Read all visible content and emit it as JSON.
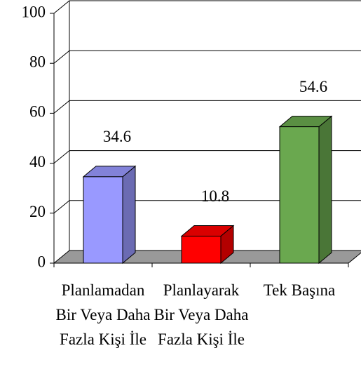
{
  "chart_data": {
    "type": "bar3d",
    "categories": [
      "Planlamadan Bir Veya Daha Fazla Kişi İle",
      "Planlayarak Bir Veya Daha Fazla Kişi İle",
      "Tek Başına"
    ],
    "values": [
      34.6,
      10.8,
      54.6
    ],
    "colors": [
      "#9999ff",
      "#ff0000",
      "#6aa84f"
    ],
    "ylim": [
      0,
      100
    ],
    "yticks": [
      0,
      20,
      40,
      60,
      80,
      100
    ],
    "grid": true
  }
}
